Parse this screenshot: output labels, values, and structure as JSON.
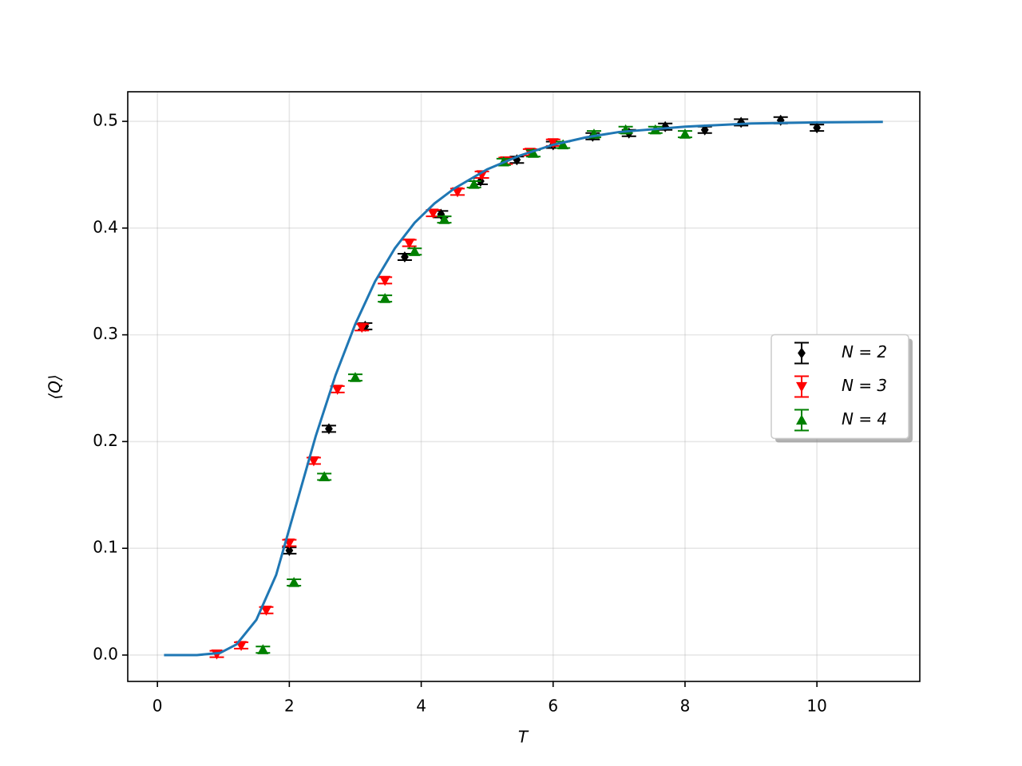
{
  "chart_data": {
    "type": "errorbar",
    "x_label": "T",
    "y_label": "⟨Q⟩",
    "xlim": [
      -0.45,
      11.56
    ],
    "ylim": [
      -0.0247,
      0.5277
    ],
    "xticks": [
      0,
      2,
      4,
      6,
      8,
      10
    ],
    "yticks": [
      {
        "value": 0,
        "label": "0.0"
      },
      0.1,
      0.2,
      0.3,
      0.4,
      0.5
    ],
    "grid": true,
    "legend": "center right",
    "series": [
      {
        "name": "N = 2",
        "color": "#000000",
        "marker": "diamond",
        "x": [
          2.0,
          2.6,
          3.15,
          3.75,
          4.3,
          4.9,
          5.45,
          6.0,
          6.6,
          7.15,
          7.7,
          8.3,
          8.85,
          9.45,
          10.0
        ],
        "values": [
          0.098,
          0.212,
          0.308,
          0.373,
          0.413,
          0.444,
          0.464,
          0.478,
          0.486,
          0.489,
          0.495,
          0.492,
          0.499,
          0.501,
          0.494
        ],
        "errors": [
          0.003,
          0.003,
          0.003,
          0.003,
          0.003,
          0.003,
          0.003,
          0.003,
          0.003,
          0.003,
          0.003,
          0.003,
          0.003,
          0.003,
          0.003
        ]
      },
      {
        "name": "N = 3",
        "color": "#ff0000",
        "marker": "triangle-down",
        "x": [
          0.9,
          1.27,
          1.65,
          2.0,
          2.37,
          2.73,
          3.1,
          3.45,
          3.82,
          4.18,
          4.55,
          4.92,
          5.28,
          5.65,
          6.0
        ],
        "values": [
          0.001,
          0.009,
          0.042,
          0.105,
          0.182,
          0.249,
          0.307,
          0.351,
          0.386,
          0.414,
          0.434,
          0.45,
          0.463,
          0.471,
          0.48
        ],
        "errors": [
          0.003,
          0.003,
          0.003,
          0.003,
          0.003,
          0.003,
          0.003,
          0.003,
          0.003,
          0.003,
          0.003,
          0.003,
          0.003,
          0.003,
          0.003
        ]
      },
      {
        "name": "N = 4",
        "color": "#008000",
        "marker": "triangle-up",
        "x": [
          1.6,
          2.07,
          2.53,
          3.0,
          3.45,
          3.9,
          4.35,
          4.8,
          5.25,
          5.7,
          6.15,
          6.62,
          7.1,
          7.55,
          8.0
        ],
        "values": [
          0.005,
          0.068,
          0.167,
          0.26,
          0.334,
          0.378,
          0.408,
          0.441,
          0.462,
          0.47,
          0.478,
          0.488,
          0.492,
          0.492,
          0.488
        ],
        "errors": [
          0.003,
          0.003,
          0.003,
          0.003,
          0.003,
          0.003,
          0.003,
          0.003,
          0.003,
          0.003,
          0.003,
          0.003,
          0.003,
          0.003,
          0.003
        ]
      }
    ],
    "curve": {
      "color": "#1f77b4",
      "x": [
        0.1,
        0.6,
        0.95,
        1.2,
        1.5,
        1.8,
        2.1,
        2.4,
        2.7,
        3.0,
        3.3,
        3.6,
        3.9,
        4.2,
        4.5,
        5.0,
        5.5,
        6.0,
        6.5,
        7.0,
        8.0,
        9.0,
        10.0,
        11.0
      ],
      "values": [
        0,
        0,
        0.002,
        0.01,
        0.033,
        0.075,
        0.14,
        0.205,
        0.262,
        0.31,
        0.35,
        0.381,
        0.405,
        0.423,
        0.437,
        0.455,
        0.468,
        0.478,
        0.485,
        0.49,
        0.495,
        0.498,
        0.499,
        0.4995
      ]
    }
  }
}
